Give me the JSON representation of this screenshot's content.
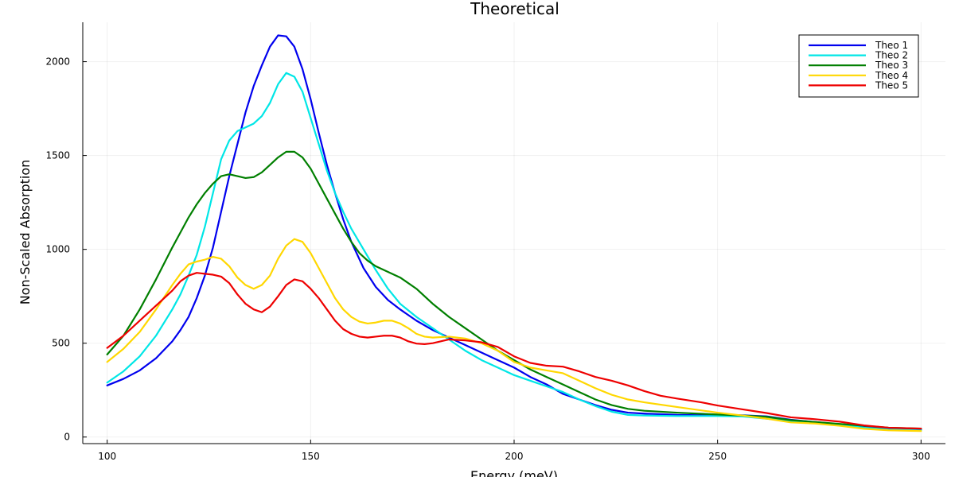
{
  "chart_data": {
    "type": "line",
    "title": "Theoretical",
    "xlabel": "Energy (meV)",
    "ylabel": "Non-Scaled Absorption",
    "xlim": [
      94,
      306
    ],
    "ylim": [
      -35,
      2210
    ],
    "xticks": [
      100,
      150,
      200,
      250,
      300
    ],
    "yticks": [
      0,
      500,
      1000,
      1500,
      2000
    ],
    "grid": true,
    "legend_position": "top-right",
    "series": [
      {
        "name": "Theo 1",
        "color": "#0000ee",
        "points": [
          [
            100,
            275
          ],
          [
            104,
            310
          ],
          [
            108,
            355
          ],
          [
            112,
            420
          ],
          [
            116,
            510
          ],
          [
            118,
            570
          ],
          [
            120,
            640
          ],
          [
            122,
            740
          ],
          [
            124,
            860
          ],
          [
            126,
            1010
          ],
          [
            128,
            1200
          ],
          [
            130,
            1390
          ],
          [
            132,
            1560
          ],
          [
            134,
            1730
          ],
          [
            136,
            1870
          ],
          [
            138,
            1980
          ],
          [
            140,
            2080
          ],
          [
            142,
            2140
          ],
          [
            144,
            2135
          ],
          [
            146,
            2080
          ],
          [
            148,
            1960
          ],
          [
            150,
            1800
          ],
          [
            152,
            1620
          ],
          [
            154,
            1450
          ],
          [
            156,
            1300
          ],
          [
            158,
            1160
          ],
          [
            160,
            1040
          ],
          [
            163,
            900
          ],
          [
            166,
            800
          ],
          [
            169,
            730
          ],
          [
            172,
            680
          ],
          [
            176,
            620
          ],
          [
            180,
            570
          ],
          [
            184,
            530
          ],
          [
            188,
            490
          ],
          [
            192,
            450
          ],
          [
            196,
            410
          ],
          [
            200,
            370
          ],
          [
            204,
            320
          ],
          [
            208,
            280
          ],
          [
            212,
            230
          ],
          [
            216,
            200
          ],
          [
            220,
            170
          ],
          [
            224,
            145
          ],
          [
            228,
            130
          ],
          [
            232,
            125
          ],
          [
            240,
            118
          ],
          [
            250,
            115
          ],
          [
            256,
            116
          ],
          [
            262,
            110
          ],
          [
            268,
            92
          ],
          [
            274,
            80
          ],
          [
            280,
            68
          ],
          [
            286,
            55
          ],
          [
            292,
            46
          ],
          [
            300,
            40
          ]
        ]
      },
      {
        "name": "Theo 2",
        "color": "#00e6e6",
        "points": [
          [
            100,
            290
          ],
          [
            104,
            350
          ],
          [
            108,
            430
          ],
          [
            112,
            540
          ],
          [
            116,
            680
          ],
          [
            118,
            760
          ],
          [
            120,
            860
          ],
          [
            122,
            970
          ],
          [
            124,
            1120
          ],
          [
            126,
            1300
          ],
          [
            128,
            1480
          ],
          [
            130,
            1580
          ],
          [
            132,
            1630
          ],
          [
            134,
            1650
          ],
          [
            136,
            1670
          ],
          [
            138,
            1710
          ],
          [
            140,
            1780
          ],
          [
            142,
            1880
          ],
          [
            144,
            1940
          ],
          [
            146,
            1920
          ],
          [
            148,
            1840
          ],
          [
            150,
            1700
          ],
          [
            152,
            1560
          ],
          [
            154,
            1420
          ],
          [
            156,
            1300
          ],
          [
            158,
            1200
          ],
          [
            160,
            1110
          ],
          [
            163,
            1000
          ],
          [
            166,
            890
          ],
          [
            169,
            790
          ],
          [
            172,
            710
          ],
          [
            176,
            640
          ],
          [
            180,
            580
          ],
          [
            184,
            520
          ],
          [
            188,
            460
          ],
          [
            192,
            410
          ],
          [
            196,
            370
          ],
          [
            200,
            330
          ],
          [
            204,
            300
          ],
          [
            208,
            270
          ],
          [
            212,
            240
          ],
          [
            216,
            200
          ],
          [
            220,
            165
          ],
          [
            224,
            135
          ],
          [
            228,
            118
          ],
          [
            232,
            115
          ],
          [
            240,
            112
          ],
          [
            250,
            112
          ],
          [
            256,
            110
          ],
          [
            262,
            98
          ],
          [
            268,
            85
          ],
          [
            274,
            78
          ],
          [
            280,
            66
          ],
          [
            286,
            50
          ],
          [
            292,
            40
          ],
          [
            300,
            35
          ]
        ]
      },
      {
        "name": "Theo 3",
        "color": "#007f00",
        "points": [
          [
            100,
            440
          ],
          [
            104,
            540
          ],
          [
            108,
            680
          ],
          [
            112,
            840
          ],
          [
            116,
            1010
          ],
          [
            118,
            1090
          ],
          [
            120,
            1170
          ],
          [
            122,
            1240
          ],
          [
            124,
            1300
          ],
          [
            126,
            1350
          ],
          [
            128,
            1390
          ],
          [
            130,
            1400
          ],
          [
            132,
            1390
          ],
          [
            134,
            1380
          ],
          [
            136,
            1385
          ],
          [
            138,
            1410
          ],
          [
            140,
            1450
          ],
          [
            142,
            1490
          ],
          [
            144,
            1520
          ],
          [
            146,
            1520
          ],
          [
            148,
            1490
          ],
          [
            150,
            1430
          ],
          [
            152,
            1350
          ],
          [
            154,
            1270
          ],
          [
            156,
            1190
          ],
          [
            158,
            1110
          ],
          [
            160,
            1040
          ],
          [
            162,
            980
          ],
          [
            164,
            940
          ],
          [
            166,
            910
          ],
          [
            169,
            880
          ],
          [
            172,
            850
          ],
          [
            176,
            790
          ],
          [
            180,
            710
          ],
          [
            184,
            640
          ],
          [
            188,
            580
          ],
          [
            192,
            520
          ],
          [
            196,
            460
          ],
          [
            200,
            410
          ],
          [
            204,
            360
          ],
          [
            208,
            320
          ],
          [
            212,
            280
          ],
          [
            216,
            240
          ],
          [
            220,
            200
          ],
          [
            224,
            170
          ],
          [
            228,
            150
          ],
          [
            232,
            140
          ],
          [
            240,
            130
          ],
          [
            250,
            120
          ],
          [
            256,
            115
          ],
          [
            262,
            108
          ],
          [
            268,
            90
          ],
          [
            274,
            80
          ],
          [
            280,
            70
          ],
          [
            286,
            60
          ],
          [
            292,
            50
          ],
          [
            300,
            45
          ]
        ]
      },
      {
        "name": "Theo 4",
        "color": "#ffd700",
        "points": [
          [
            100,
            400
          ],
          [
            104,
            470
          ],
          [
            108,
            560
          ],
          [
            112,
            680
          ],
          [
            116,
            810
          ],
          [
            118,
            870
          ],
          [
            120,
            920
          ],
          [
            122,
            935
          ],
          [
            124,
            945
          ],
          [
            126,
            960
          ],
          [
            128,
            950
          ],
          [
            130,
            910
          ],
          [
            132,
            850
          ],
          [
            134,
            810
          ],
          [
            136,
            790
          ],
          [
            138,
            810
          ],
          [
            140,
            860
          ],
          [
            142,
            950
          ],
          [
            144,
            1020
          ],
          [
            146,
            1055
          ],
          [
            148,
            1040
          ],
          [
            150,
            980
          ],
          [
            152,
            900
          ],
          [
            154,
            820
          ],
          [
            156,
            740
          ],
          [
            158,
            680
          ],
          [
            160,
            640
          ],
          [
            162,
            615
          ],
          [
            164,
            605
          ],
          [
            166,
            610
          ],
          [
            168,
            620
          ],
          [
            170,
            620
          ],
          [
            172,
            605
          ],
          [
            174,
            580
          ],
          [
            176,
            550
          ],
          [
            178,
            535
          ],
          [
            180,
            530
          ],
          [
            184,
            535
          ],
          [
            188,
            525
          ],
          [
            192,
            500
          ],
          [
            196,
            460
          ],
          [
            200,
            400
          ],
          [
            204,
            370
          ],
          [
            208,
            355
          ],
          [
            212,
            340
          ],
          [
            216,
            300
          ],
          [
            220,
            260
          ],
          [
            224,
            225
          ],
          [
            228,
            200
          ],
          [
            232,
            185
          ],
          [
            240,
            160
          ],
          [
            250,
            130
          ],
          [
            256,
            115
          ],
          [
            262,
            98
          ],
          [
            268,
            78
          ],
          [
            274,
            72
          ],
          [
            280,
            60
          ],
          [
            286,
            44
          ],
          [
            292,
            36
          ],
          [
            300,
            32
          ]
        ]
      },
      {
        "name": "Theo 5",
        "color": "#ee0000",
        "points": [
          [
            100,
            475
          ],
          [
            104,
            540
          ],
          [
            108,
            620
          ],
          [
            112,
            700
          ],
          [
            116,
            780
          ],
          [
            118,
            830
          ],
          [
            120,
            860
          ],
          [
            122,
            875
          ],
          [
            124,
            870
          ],
          [
            126,
            865
          ],
          [
            128,
            855
          ],
          [
            130,
            820
          ],
          [
            132,
            760
          ],
          [
            134,
            710
          ],
          [
            136,
            680
          ],
          [
            138,
            665
          ],
          [
            140,
            695
          ],
          [
            142,
            750
          ],
          [
            144,
            810
          ],
          [
            146,
            840
          ],
          [
            148,
            830
          ],
          [
            150,
            790
          ],
          [
            152,
            740
          ],
          [
            154,
            680
          ],
          [
            156,
            620
          ],
          [
            158,
            575
          ],
          [
            160,
            550
          ],
          [
            162,
            535
          ],
          [
            164,
            530
          ],
          [
            166,
            535
          ],
          [
            168,
            540
          ],
          [
            170,
            540
          ],
          [
            172,
            530
          ],
          [
            174,
            510
          ],
          [
            176,
            498
          ],
          [
            178,
            495
          ],
          [
            180,
            500
          ],
          [
            184,
            520
          ],
          [
            188,
            515
          ],
          [
            192,
            505
          ],
          [
            196,
            480
          ],
          [
            200,
            430
          ],
          [
            204,
            395
          ],
          [
            208,
            380
          ],
          [
            212,
            375
          ],
          [
            216,
            350
          ],
          [
            220,
            320
          ],
          [
            224,
            300
          ],
          [
            228,
            275
          ],
          [
            232,
            245
          ],
          [
            236,
            220
          ],
          [
            240,
            205
          ],
          [
            246,
            185
          ],
          [
            250,
            168
          ],
          [
            256,
            148
          ],
          [
            262,
            128
          ],
          [
            268,
            105
          ],
          [
            274,
            95
          ],
          [
            280,
            82
          ],
          [
            286,
            62
          ],
          [
            292,
            50
          ],
          [
            300,
            45
          ]
        ]
      }
    ]
  }
}
